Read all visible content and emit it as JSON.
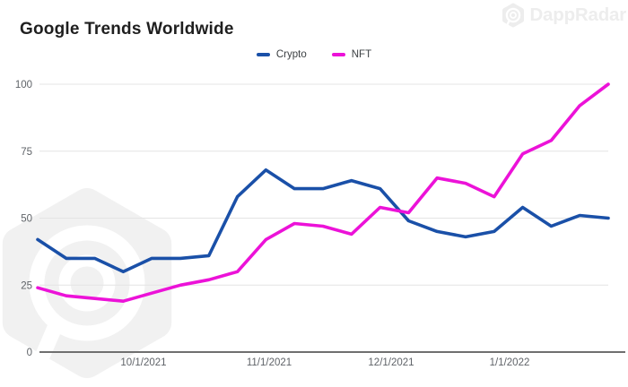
{
  "title": "Google Trends Worldwide",
  "watermarks": {
    "brand": "DappRadar"
  },
  "colors": {
    "title": "#1f1f1f",
    "tick_label": "#5f6368",
    "gridline": "#e4e4e4",
    "axis_line": "#6f6f6f",
    "legend_text": "#3c4043",
    "watermark_light": "#ededed",
    "watermark_big": "#f1f1f1",
    "background": "#ffffff"
  },
  "chart_data": {
    "type": "line",
    "title": "Google Trends Worldwide",
    "xlabel": "",
    "ylabel": "",
    "ylim": [
      0,
      100
    ],
    "y_ticks": [
      0,
      25,
      50,
      75,
      100
    ],
    "x_tick_labels": [
      "10/1/2021",
      "11/1/2021",
      "12/1/2021",
      "1/1/2022"
    ],
    "grid": "horizontal",
    "legend_position": "top-center",
    "series": [
      {
        "name": "Crypto",
        "color": "#1a50a8",
        "values": [
          42,
          35,
          35,
          30,
          35,
          35,
          36,
          58,
          68,
          61,
          61,
          64,
          61,
          49,
          45,
          43,
          45,
          54,
          47,
          51,
          50
        ]
      },
      {
        "name": "NFT",
        "color": "#ec12d8",
        "values": [
          24,
          21,
          20,
          19,
          22,
          25,
          27,
          30,
          42,
          48,
          47,
          44,
          54,
          52,
          65,
          63,
          58,
          74,
          79,
          92,
          100
        ]
      }
    ]
  }
}
